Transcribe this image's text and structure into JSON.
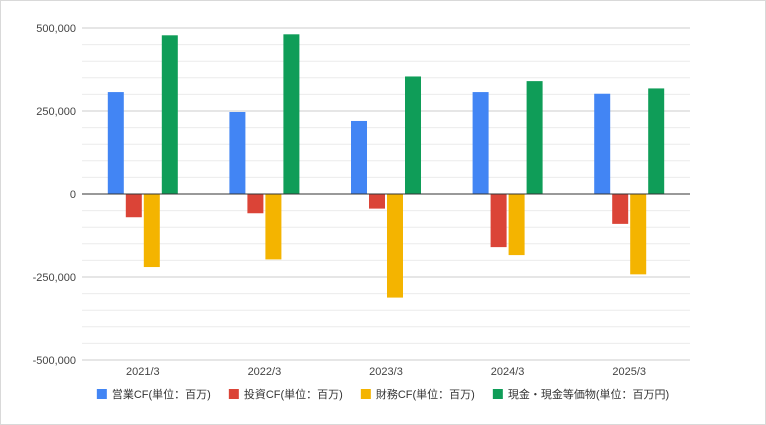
{
  "chart_data": {
    "type": "bar",
    "categories": [
      "2021/3",
      "2022/3",
      "2023/3",
      "2024/3",
      "2025/3"
    ],
    "series": [
      {
        "name": "営業CF(単位：百万)",
        "color": "#4285F4",
        "values": [
          307000,
          247000,
          220000,
          307000,
          302000
        ]
      },
      {
        "name": "投資CF(単位：百万)",
        "color": "#DB4437",
        "values": [
          -70000,
          -58000,
          -44000,
          -160000,
          -90000
        ]
      },
      {
        "name": "財務CF(単位：百万)",
        "color": "#F4B400",
        "values": [
          -220000,
          -197000,
          -312000,
          -184000,
          -242000
        ]
      },
      {
        "name": "現金・現金等価物(単位：百万円)",
        "color": "#0F9D58",
        "values": [
          478000,
          481000,
          354000,
          340000,
          318000
        ]
      }
    ],
    "ylim": [
      -500000,
      500000
    ],
    "yticks": [
      {
        "value": 500000,
        "label": "500,000"
      },
      {
        "value": 250000,
        "label": "250,000"
      },
      {
        "value": 0,
        "label": "0"
      },
      {
        "value": -250000,
        "label": "-250,000"
      },
      {
        "value": -500000,
        "label": "-500,000"
      }
    ],
    "minor_gridlines": 4,
    "grid": true,
    "legend_position": "bottom",
    "title": "",
    "xlabel": "",
    "ylabel": ""
  }
}
